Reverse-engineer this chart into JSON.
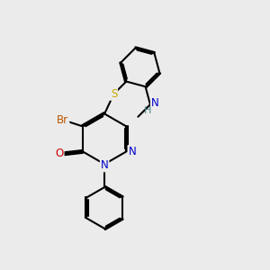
{
  "bg_color": "#ebebeb",
  "bond_color": "#000000",
  "bond_width": 1.5,
  "atom_colors": {
    "N": "#0000cc",
    "O": "#cc0000",
    "S": "#ccaa00",
    "Br": "#bb5500",
    "C": "#000000",
    "H": "#4a8888"
  },
  "font_size": 8.5,
  "fig_size": [
    3.0,
    3.0
  ],
  "dpi": 100
}
